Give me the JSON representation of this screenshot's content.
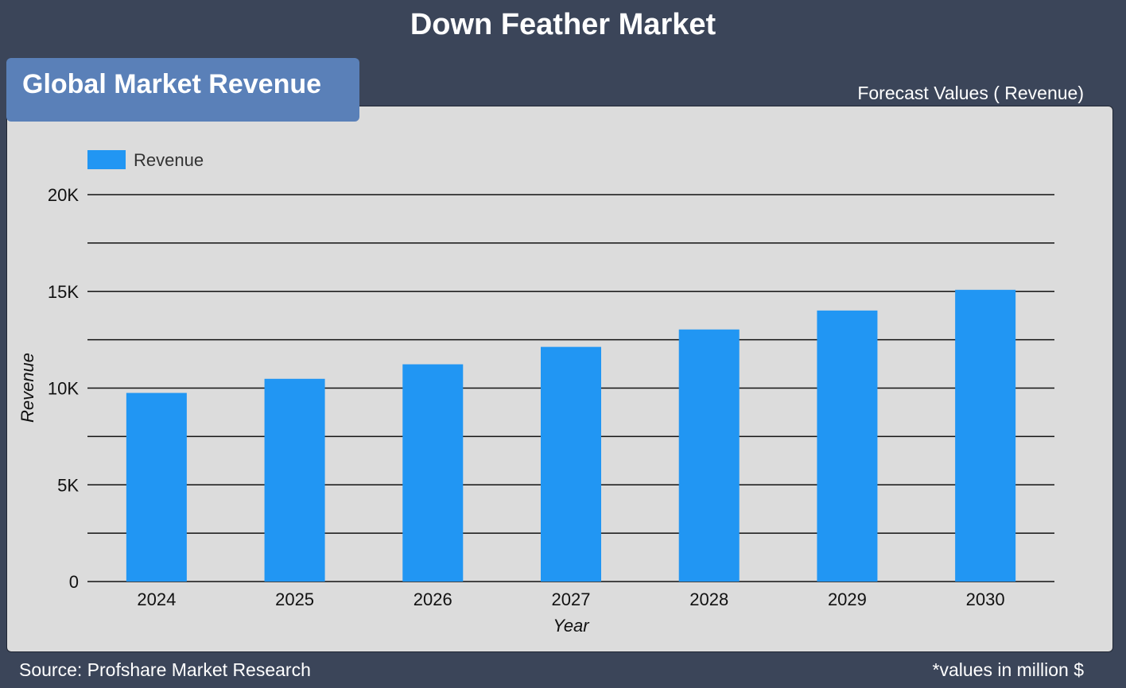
{
  "header": {
    "title": "Down Feather Market"
  },
  "panel": {
    "tab_label": "Global Market Revenue",
    "subtitle": "Forecast Values ( Revenue)"
  },
  "footer": {
    "source": "Source: Profshare Market Research",
    "note": "*values in million $"
  },
  "colors": {
    "page_background": "#3b4559",
    "panel_background": "#dcdcdc",
    "tab_background": "#5a80b8",
    "bar": "#2196f3"
  },
  "chart_data": {
    "type": "bar",
    "title": "",
    "xlabel": "Year",
    "ylabel": "Revenue",
    "categories": [
      "2024",
      "2025",
      "2026",
      "2027",
      "2028",
      "2029",
      "2030"
    ],
    "series": [
      {
        "name": "Revenue",
        "values": [
          9750,
          10480,
          11230,
          12130,
          13030,
          14010,
          15080
        ]
      }
    ],
    "ylim": [
      0,
      20000
    ],
    "yticks": [
      0,
      5000,
      10000,
      15000,
      20000
    ],
    "ytick_labels": [
      "0",
      "5K",
      "10K",
      "15K",
      "20K"
    ],
    "minor_gridlines_at": [
      2500,
      7500,
      12500,
      17500
    ],
    "grid": true,
    "legend_position": "top-left"
  }
}
